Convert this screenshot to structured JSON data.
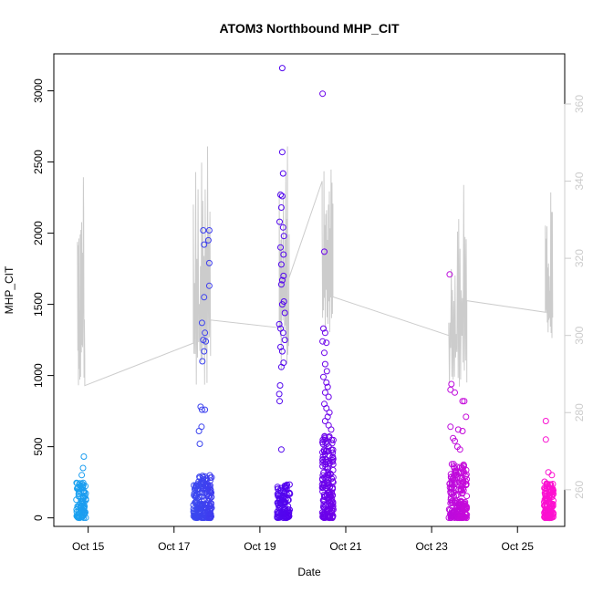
{
  "chart_data": {
    "type": "scatter",
    "title": "ATOM3 Northbound MHP_CIT",
    "xlabel": "Date",
    "ylabel": "MHP_CIT",
    "x_ticks": [
      "Oct 15",
      "Oct 17",
      "Oct 19",
      "Oct 21",
      "Oct 23",
      "Oct 25"
    ],
    "x_tick_days": [
      15,
      17,
      19,
      21,
      23,
      25
    ],
    "xlim": [
      14.2,
      26.1
    ],
    "ylim": [
      -60,
      3260
    ],
    "y_ticks": [
      0,
      500,
      1000,
      1500,
      2000,
      2500,
      3000
    ],
    "y2_ticks": [
      260,
      280,
      300,
      320,
      340,
      360
    ],
    "y2lim": [
      250.5,
      373.0
    ],
    "grid": false,
    "colors": {
      "axis": "#000000",
      "secondary_line": "#cccccc",
      "secondary_axis_text": "#cccccc",
      "gradient_start": "#1aa3f0",
      "gradient_mid": "#5500ee",
      "gradient_end": "#ff10d0"
    },
    "secondary_series": {
      "segments": [
        {
          "x0": 14.75,
          "x1": 14.92,
          "y0": 300,
          "y1": 300,
          "amp": 37,
          "n": 22,
          "peak": 341
        },
        {
          "x0": 17.45,
          "x1": 17.85,
          "y0": 301,
          "y1": 301,
          "amp": 45,
          "n": 30,
          "peak": 349
        },
        {
          "x0": 19.45,
          "x1": 19.68,
          "y0": 306,
          "y1": 306,
          "amp": 45,
          "n": 25,
          "peak": 349
        },
        {
          "x0": 20.45,
          "x1": 20.7,
          "y0": 312,
          "y1": 312,
          "amp": 32,
          "n": 25,
          "peak": 343
        },
        {
          "x0": 23.4,
          "x1": 23.82,
          "y0": 300,
          "y1": 300,
          "amp": 38,
          "n": 30,
          "peak": 339
        },
        {
          "x0": 25.65,
          "x1": 25.82,
          "y0": 308,
          "y1": 308,
          "amp": 30,
          "n": 20,
          "peak": 332
        }
      ],
      "connectors": [
        {
          "x": 14.92,
          "y": 287
        },
        {
          "x": 17.45,
          "y": 298
        },
        {
          "x": 17.85,
          "y": 304
        },
        {
          "x": 19.45,
          "y": 302
        },
        {
          "x": 19.68,
          "y": 315
        },
        {
          "x": 20.45,
          "y": 340
        },
        {
          "x": 20.7,
          "y": 310
        },
        {
          "x": 23.4,
          "y": 300
        },
        {
          "x": 23.82,
          "y": 309
        },
        {
          "x": 25.65,
          "y": 306
        }
      ]
    },
    "clusters": [
      {
        "x0": 14.72,
        "x1": 14.95,
        "n": 90,
        "base_max": 250,
        "extras": [
          [
            14.9,
            430
          ],
          [
            14.88,
            350
          ],
          [
            14.85,
            300
          ]
        ]
      },
      {
        "x0": 17.45,
        "x1": 17.88,
        "n": 190,
        "base_max": 300,
        "extras": [
          [
            17.68,
            2020
          ],
          [
            17.82,
            2020
          ],
          [
            17.8,
            1950
          ],
          [
            17.7,
            1920
          ],
          [
            17.82,
            1790
          ],
          [
            17.82,
            1630
          ],
          [
            17.7,
            1550
          ],
          [
            17.65,
            1370
          ],
          [
            17.72,
            1300
          ],
          [
            17.68,
            1250
          ],
          [
            17.74,
            1240
          ],
          [
            17.7,
            1170
          ],
          [
            17.66,
            1100
          ],
          [
            17.62,
            780
          ],
          [
            17.65,
            760
          ],
          [
            17.72,
            760
          ],
          [
            17.64,
            640
          ],
          [
            17.58,
            610
          ],
          [
            17.6,
            520
          ]
        ]
      },
      {
        "x0": 19.4,
        "x1": 19.7,
        "n": 110,
        "base_max": 250,
        "extras": [
          [
            19.52,
            3160
          ],
          [
            19.52,
            2570
          ],
          [
            19.54,
            2420
          ],
          [
            19.48,
            2270
          ],
          [
            19.52,
            2260
          ],
          [
            19.5,
            2180
          ],
          [
            19.46,
            2080
          ],
          [
            19.54,
            2040
          ],
          [
            19.56,
            1980
          ],
          [
            19.48,
            1900
          ],
          [
            19.55,
            1850
          ],
          [
            19.5,
            1780
          ],
          [
            19.55,
            1700
          ],
          [
            19.52,
            1670
          ],
          [
            19.5,
            1640
          ],
          [
            19.56,
            1520
          ],
          [
            19.52,
            1500
          ],
          [
            19.58,
            1440
          ],
          [
            19.45,
            1360
          ],
          [
            19.48,
            1330
          ],
          [
            19.54,
            1300
          ],
          [
            19.58,
            1250
          ],
          [
            19.48,
            1200
          ],
          [
            19.52,
            1170
          ],
          [
            19.55,
            1090
          ],
          [
            19.5,
            1060
          ],
          [
            19.47,
            930
          ],
          [
            19.45,
            870
          ],
          [
            19.46,
            820
          ],
          [
            19.5,
            480
          ]
        ]
      },
      {
        "x0": 20.45,
        "x1": 20.72,
        "n": 170,
        "base_max": 600,
        "extras": [
          [
            20.46,
            2980
          ],
          [
            20.5,
            1870
          ],
          [
            20.48,
            1330
          ],
          [
            20.52,
            1300
          ],
          [
            20.46,
            1240
          ],
          [
            20.55,
            1230
          ],
          [
            20.5,
            1160
          ],
          [
            20.52,
            1080
          ],
          [
            20.56,
            1030
          ],
          [
            20.48,
            990
          ],
          [
            20.55,
            950
          ],
          [
            20.58,
            920
          ],
          [
            20.52,
            880
          ],
          [
            20.6,
            850
          ],
          [
            20.5,
            800
          ],
          [
            20.55,
            770
          ],
          [
            20.62,
            740
          ],
          [
            20.58,
            710
          ],
          [
            20.52,
            680
          ],
          [
            20.6,
            650
          ],
          [
            20.66,
            620
          ]
        ]
      },
      {
        "x0": 23.4,
        "x1": 23.82,
        "n": 190,
        "base_max": 380,
        "extras": [
          [
            23.42,
            1710
          ],
          [
            23.46,
            940
          ],
          [
            23.44,
            900
          ],
          [
            23.54,
            880
          ],
          [
            23.72,
            820
          ],
          [
            23.76,
            820
          ],
          [
            23.8,
            710
          ],
          [
            23.44,
            640
          ],
          [
            23.62,
            620
          ],
          [
            23.72,
            610
          ],
          [
            23.5,
            560
          ],
          [
            23.54,
            540
          ],
          [
            23.6,
            500
          ],
          [
            23.66,
            480
          ]
        ]
      },
      {
        "x0": 25.62,
        "x1": 25.84,
        "n": 130,
        "base_max": 260,
        "extras": [
          [
            25.66,
            680
          ],
          [
            25.66,
            550
          ],
          [
            25.72,
            320
          ],
          [
            25.8,
            300
          ]
        ]
      }
    ]
  }
}
